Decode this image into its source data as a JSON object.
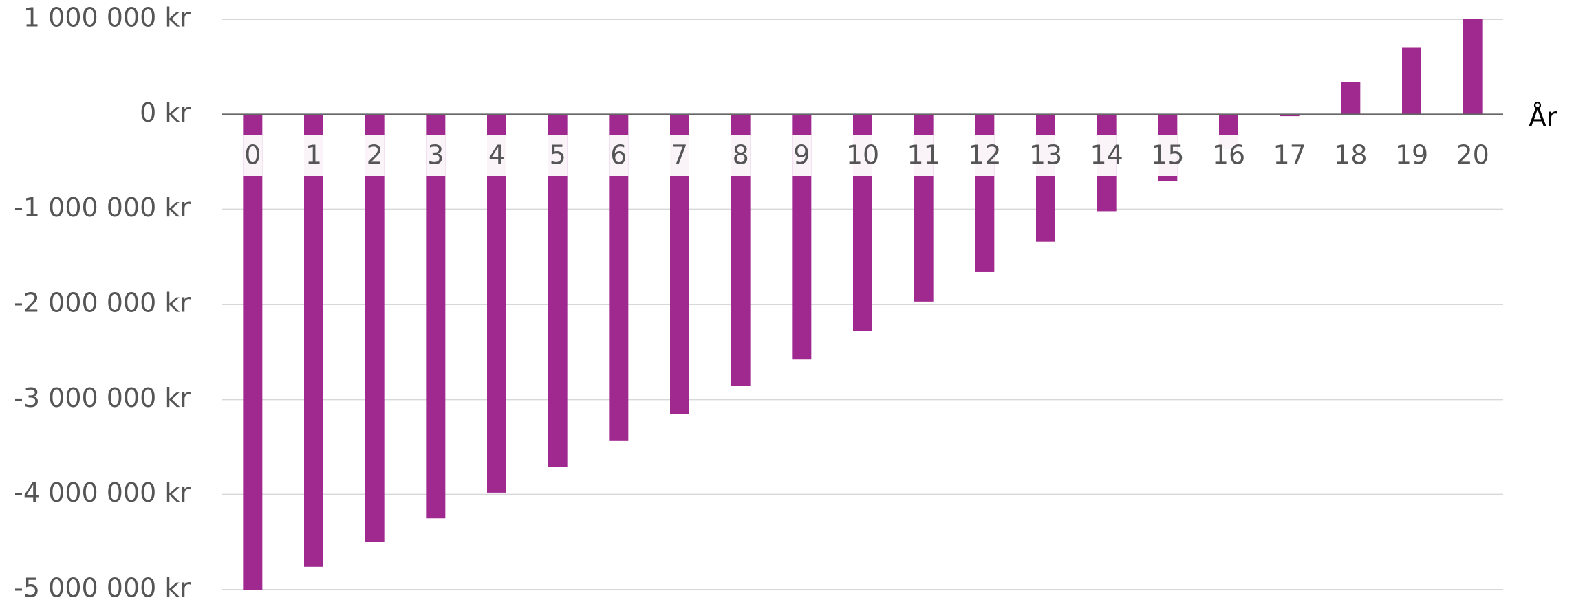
{
  "chart_data": {
    "type": "bar",
    "x_label": "År",
    "categories": [
      "0",
      "1",
      "2",
      "3",
      "4",
      "5",
      "6",
      "7",
      "8",
      "9",
      "10",
      "11",
      "12",
      "13",
      "14",
      "15",
      "16",
      "17",
      "18",
      "19",
      "20"
    ],
    "values": [
      -5000000,
      -4760000,
      -4500000,
      -4250000,
      -3980000,
      -3710000,
      -3430000,
      -3150000,
      -2860000,
      -2580000,
      -2280000,
      -1970000,
      -1660000,
      -1340000,
      -1020000,
      -700000,
      -370000,
      -20000,
      340000,
      700000,
      1000000
    ],
    "color": "#a0298f",
    "ylim": [
      -5000000,
      1000000
    ],
    "yticks": [
      {
        "value": 1000000,
        "label": "1 000 000 kr"
      },
      {
        "value": 0,
        "label": "0 kr"
      },
      {
        "value": -1000000,
        "label": "-1 000 000 kr"
      },
      {
        "value": -2000000,
        "label": "-2 000 000 kr"
      },
      {
        "value": -3000000,
        "label": "-3 000 000 kr"
      },
      {
        "value": -4000000,
        "label": "-4 000 000 kr"
      },
      {
        "value": -5000000,
        "label": "-5 000 000 kr"
      }
    ],
    "grid": true
  }
}
